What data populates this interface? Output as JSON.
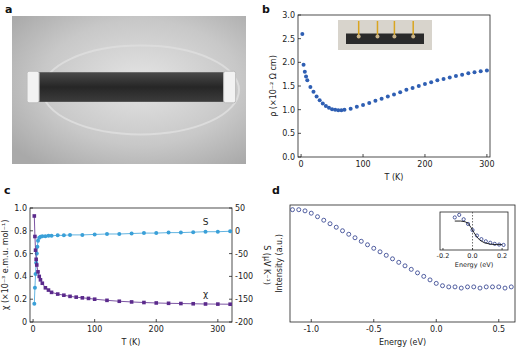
{
  "chart_data": [
    {
      "type": "photo",
      "title": "a"
    },
    {
      "type": "scatter",
      "title": "b",
      "x_label": "T (K)",
      "y_label": "ρ (×10⁻² Ω cm)",
      "xlim": [
        -5,
        305
      ],
      "ylim": [
        0,
        3
      ],
      "xticks": [
        0,
        100,
        200,
        300
      ],
      "yticks": [
        {
          "value": 0,
          "label": "0.0"
        },
        0.5,
        {
          "value": 1,
          "label": "1.0"
        },
        1.5,
        {
          "value": 2,
          "label": "2.0"
        },
        2.5,
        {
          "value": 3,
          "label": "3.0"
        }
      ],
      "grid": false,
      "series": [
        {
          "color": "#2f5fb3",
          "marker": "circle",
          "x": [
            2,
            4,
            6,
            8,
            10,
            15,
            20,
            25,
            30,
            35,
            40,
            45,
            50,
            55,
            60,
            65,
            70,
            80,
            90,
            100,
            110,
            120,
            130,
            140,
            150,
            160,
            170,
            180,
            190,
            200,
            210,
            220,
            230,
            240,
            250,
            260,
            270,
            280,
            290,
            300
          ],
          "values": [
            2.6,
            1.95,
            1.8,
            1.7,
            1.62,
            1.48,
            1.38,
            1.28,
            1.2,
            1.13,
            1.08,
            1.04,
            1.01,
            1.0,
            0.99,
            0.99,
            1.0,
            1.02,
            1.06,
            1.1,
            1.14,
            1.19,
            1.23,
            1.28,
            1.32,
            1.37,
            1.42,
            1.46,
            1.5,
            1.54,
            1.58,
            1.62,
            1.65,
            1.68,
            1.71,
            1.74,
            1.77,
            1.79,
            1.81,
            1.83
          ]
        }
      ],
      "inset": {
        "type": "photo"
      }
    },
    {
      "type": "scatter",
      "title": "c",
      "x_label": "T (K)",
      "y_label": "χ (×10⁻³ e.m.u. mol⁻¹)",
      "y2_label": "S (μV K⁻¹)",
      "xlim": [
        -5,
        323
      ],
      "ylim": [
        0,
        1
      ],
      "y2lim": [
        -200,
        50
      ],
      "xticks": [
        0,
        100,
        200,
        300
      ],
      "yticks": [
        0,
        0.2,
        0.4,
        0.6,
        0.8,
        {
          "value": 1,
          "label": "1.0"
        }
      ],
      "y2ticks": [
        -200,
        -150,
        -100,
        -50,
        0,
        50
      ],
      "grid": false,
      "series": [
        {
          "name": "S",
          "axis": "y2",
          "color": "#3aa0d8",
          "marker": "circle",
          "line_style": "solid",
          "x": [
            2,
            3,
            4,
            5,
            6,
            7,
            8,
            10,
            12,
            15,
            20,
            25,
            30,
            40,
            50,
            60,
            80,
            100,
            120,
            140,
            160,
            180,
            200,
            220,
            240,
            260,
            280,
            300,
            320
          ],
          "values": [
            -160,
            -125,
            -95,
            -70,
            -50,
            -35,
            -22,
            -15,
            -13,
            -12,
            -12,
            -11,
            -11,
            -10,
            -10,
            -9,
            -9,
            -8,
            -7,
            -7,
            -6,
            -5,
            -5,
            -4,
            -4,
            -3,
            -2,
            -2,
            -1
          ]
        },
        {
          "name": "χ",
          "color": "#5b2a8c",
          "marker": "square",
          "line_style": "solid",
          "x": [
            2,
            3,
            4,
            5,
            6,
            8,
            10,
            12,
            15,
            20,
            25,
            30,
            40,
            50,
            60,
            70,
            80,
            90,
            100,
            120,
            140,
            160,
            180,
            200,
            220,
            240,
            260,
            280,
            300,
            320
          ],
          "values": [
            0.93,
            0.75,
            0.63,
            0.55,
            0.5,
            0.44,
            0.4,
            0.37,
            0.34,
            0.3,
            0.28,
            0.26,
            0.245,
            0.235,
            0.225,
            0.218,
            0.212,
            0.207,
            0.2,
            0.19,
            0.182,
            0.176,
            0.171,
            0.167,
            0.164,
            0.162,
            0.16,
            0.158,
            0.157,
            0.156
          ]
        }
      ]
    },
    {
      "type": "scatter",
      "title": "d",
      "x_label": "Energy (eV)",
      "y_label": "Intensity (a.u.)",
      "xlim": [
        -1.17,
        0.63
      ],
      "ylim": [
        0,
        1
      ],
      "xticks": [
        {
          "value": -1,
          "label": "-1.0"
        },
        -0.5,
        {
          "value": 0,
          "label": "0.0"
        },
        0.5
      ],
      "tick_labels": "x",
      "grid": false,
      "series": [
        {
          "color": "#2a3a8a",
          "marker": "open_circle",
          "x": [
            -1.15,
            -1.1,
            -1.05,
            -1.0,
            -0.95,
            -0.9,
            -0.85,
            -0.8,
            -0.75,
            -0.7,
            -0.65,
            -0.6,
            -0.55,
            -0.5,
            -0.45,
            -0.4,
            -0.35,
            -0.3,
            -0.25,
            -0.2,
            -0.15,
            -0.1,
            -0.05,
            0,
            0.05,
            0.1,
            0.15,
            0.2,
            0.25,
            0.3,
            0.35,
            0.4,
            0.45,
            0.5,
            0.55,
            0.6
          ],
          "values": [
            0.96,
            0.96,
            0.95,
            0.93,
            0.9,
            0.87,
            0.84,
            0.81,
            0.78,
            0.75,
            0.72,
            0.69,
            0.66,
            0.63,
            0.6,
            0.57,
            0.54,
            0.51,
            0.48,
            0.45,
            0.42,
            0.39,
            0.36,
            0.33,
            0.31,
            0.3,
            0.3,
            0.29,
            0.3,
            0.3,
            0.29,
            0.3,
            0.3,
            0.3,
            0.29,
            0.3
          ]
        }
      ],
      "inset": {
        "type": "scatter",
        "x_label": "Energy (eV)",
        "xlim": [
          -0.22,
          0.24
        ],
        "ylim": [
          0,
          1.05
        ],
        "xticks": [
          -0.2,
          {
            "value": 0,
            "label": "0.0"
          },
          0.2
        ],
        "tick_labels": "x",
        "grid": "zero",
        "series": [
          {
            "color": "#2a3a8a",
            "marker": "open_circle",
            "x": [
              -0.12,
              -0.09,
              -0.06,
              -0.03,
              0,
              0.03,
              0.06,
              0.09,
              0.12,
              0.15,
              0.18,
              0.21
            ],
            "values": [
              0.9,
              0.97,
              0.85,
              0.72,
              0.55,
              0.4,
              0.3,
              0.24,
              0.2,
              0.17,
              0.15,
              0.14
            ]
          },
          {
            "type": "line",
            "color": "#111111",
            "line_style": "solid",
            "x": [
              -0.12,
              -0.08,
              -0.05,
              -0.03,
              -0.01,
              0,
              0.01,
              0.03,
              0.05,
              0.08,
              0.12,
              0.16,
              0.2
            ],
            "values": [
              0.8,
              0.8,
              0.78,
              0.74,
              0.62,
              0.55,
              0.48,
              0.36,
              0.27,
              0.2,
              0.16,
              0.15,
              0.15
            ]
          }
        ]
      }
    }
  ]
}
